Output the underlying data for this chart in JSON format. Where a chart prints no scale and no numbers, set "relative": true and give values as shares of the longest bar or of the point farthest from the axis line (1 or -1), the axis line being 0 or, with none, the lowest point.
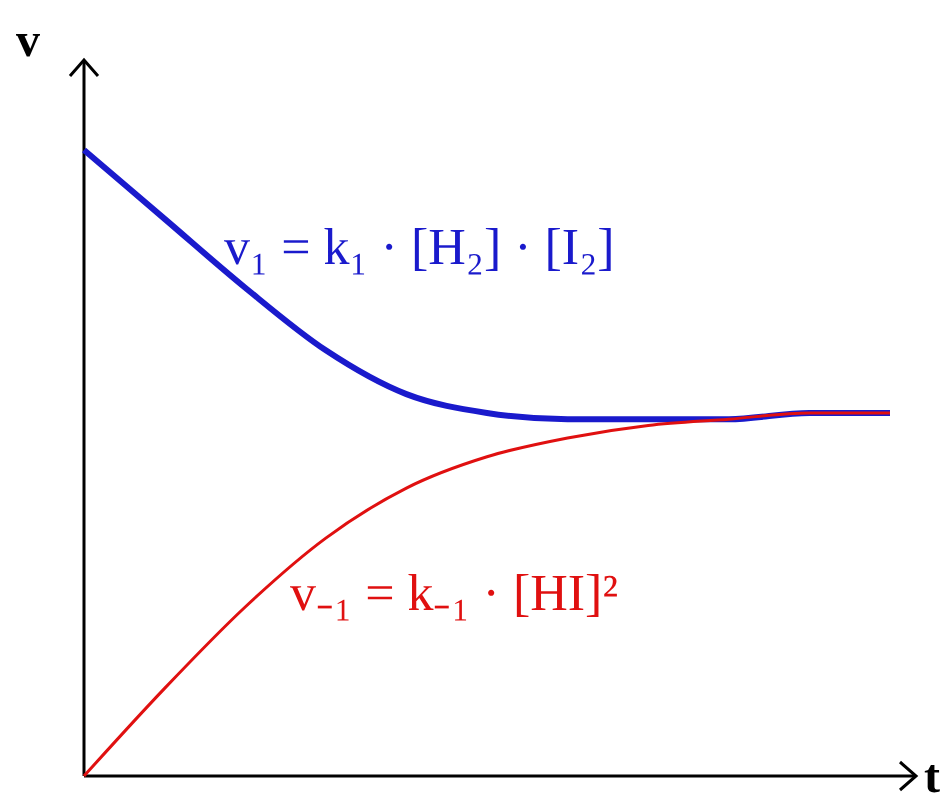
{
  "chart_data": {
    "type": "line",
    "relative": true,
    "xlabel": "t",
    "ylabel": "v",
    "categories": [
      null,
      null,
      null,
      null,
      null,
      null,
      null,
      null,
      null,
      null,
      null
    ],
    "legend": false,
    "grid": false,
    "marker": "none",
    "line_style": "solid",
    "series": [
      {
        "name": "v₁ = k₁ · [H₂] · [I₂]",
        "color": "#1a1acc",
        "values": [
          1,
          0.89,
          0.78,
          0.68,
          0.61,
          0.58,
          0.57,
          0.57,
          0.57,
          0.58,
          0.58
        ]
      },
      {
        "name": "v₋₁ = k₋₁ · [HI]²",
        "color": "#e01010",
        "values": [
          0,
          0.14,
          0.27,
          0.38,
          0.46,
          0.51,
          0.54,
          0.56,
          0.57,
          0.58,
          0.58
        ]
      }
    ]
  }
}
